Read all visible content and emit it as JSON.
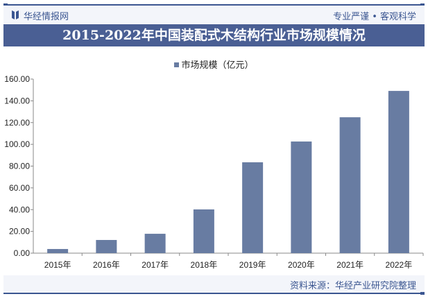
{
  "header": {
    "brand": "华经情报网",
    "slogan": "专业严谨 • 客观科学"
  },
  "title": "2015-2022年中国装配式木结构行业市场规模情况",
  "footer": {
    "source": "资料来源：华经产业研究院整理"
  },
  "colors": {
    "bar": "#687ca2",
    "title_band": "#4a5f94",
    "brand": "#3b5691"
  },
  "chart_data": {
    "type": "bar",
    "title": "2015-2022年中国装配式木结构行业市场规模情况",
    "categories": [
      "2015年",
      "2016年",
      "2017年",
      "2018年",
      "2019年",
      "2020年",
      "2021年",
      "2022年"
    ],
    "series": [
      {
        "name": "市场规模（亿元）",
        "values": [
          3.8,
          12.1,
          17.8,
          40.2,
          83.5,
          102.6,
          124.9,
          149.1
        ]
      }
    ],
    "ylim": [
      0,
      160
    ],
    "yticks": [
      "0.00",
      "20.00",
      "40.00",
      "60.00",
      "80.00",
      "100.00",
      "120.00",
      "140.00",
      "160.00"
    ],
    "legend_position": "top",
    "grid": false
  }
}
